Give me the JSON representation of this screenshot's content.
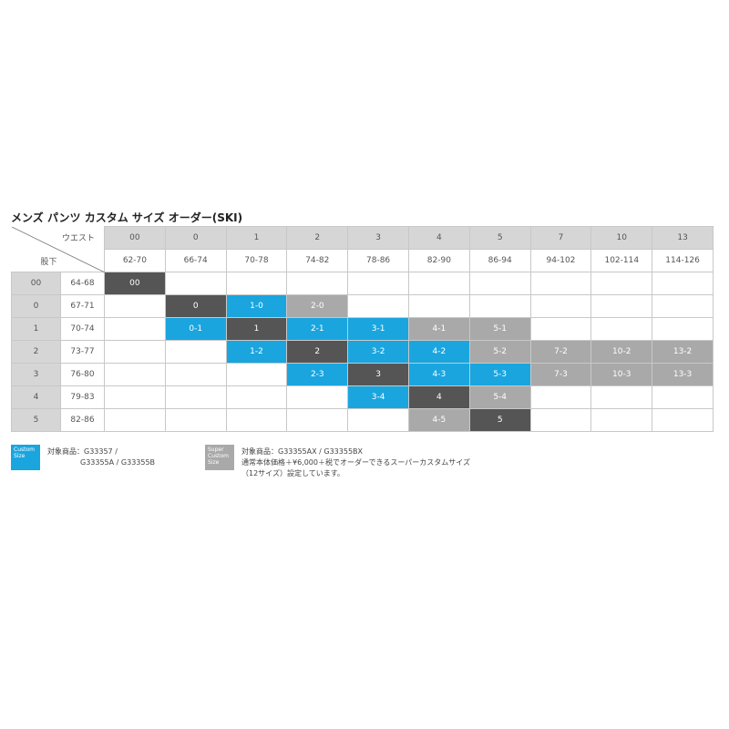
{
  "title": "メンズ パンツ カスタム サイズ オーダー(SKI)",
  "corner": {
    "waist_label": "ウエスト",
    "inseam_label": "股下"
  },
  "waist_sizes": [
    "00",
    "0",
    "1",
    "2",
    "3",
    "4",
    "5",
    "7",
    "10",
    "13"
  ],
  "waist_ranges": [
    "62-70",
    "66-74",
    "70-78",
    "74-82",
    "78-86",
    "82-90",
    "86-94",
    "94-102",
    "102-114",
    "114-126"
  ],
  "rows": [
    {
      "size": "00",
      "range": "64-68",
      "cells": [
        [
          "00",
          "dark"
        ],
        null,
        null,
        null,
        null,
        null,
        null,
        null,
        null,
        null
      ]
    },
    {
      "size": "0",
      "range": "67-71",
      "cells": [
        null,
        [
          "0",
          "dark"
        ],
        [
          "1-0",
          "blue"
        ],
        [
          "2-0",
          "gray"
        ],
        null,
        null,
        null,
        null,
        null,
        null
      ]
    },
    {
      "size": "1",
      "range": "70-74",
      "cells": [
        null,
        [
          "0-1",
          "blue"
        ],
        [
          "1",
          "dark"
        ],
        [
          "2-1",
          "blue"
        ],
        [
          "3-1",
          "blue"
        ],
        [
          "4-1",
          "gray"
        ],
        [
          "5-1",
          "gray"
        ],
        null,
        null,
        null
      ]
    },
    {
      "size": "2",
      "range": "73-77",
      "cells": [
        null,
        null,
        [
          "1-2",
          "blue"
        ],
        [
          "2",
          "dark"
        ],
        [
          "3-2",
          "blue"
        ],
        [
          "4-2",
          "blue"
        ],
        [
          "5-2",
          "gray"
        ],
        [
          "7-2",
          "gray"
        ],
        [
          "10-2",
          "gray"
        ],
        [
          "13-2",
          "gray"
        ]
      ]
    },
    {
      "size": "3",
      "range": "76-80",
      "cells": [
        null,
        null,
        null,
        [
          "2-3",
          "blue"
        ],
        [
          "3",
          "dark"
        ],
        [
          "4-3",
          "blue"
        ],
        [
          "5-3",
          "blue"
        ],
        [
          "7-3",
          "gray"
        ],
        [
          "10-3",
          "gray"
        ],
        [
          "13-3",
          "gray"
        ]
      ]
    },
    {
      "size": "4",
      "range": "79-83",
      "cells": [
        null,
        null,
        null,
        null,
        [
          "3-4",
          "blue"
        ],
        [
          "4",
          "dark"
        ],
        [
          "5-4",
          "gray"
        ],
        null,
        null,
        null
      ]
    },
    {
      "size": "5",
      "range": "82-86",
      "cells": [
        null,
        null,
        null,
        null,
        null,
        [
          "4-5",
          "gray"
        ],
        [
          "5",
          "dark"
        ],
        null,
        null,
        null
      ]
    }
  ],
  "legend": {
    "custom": {
      "badge": "Custom Size",
      "lines": [
        "対象商品：G33357 /",
        "G33355A / G33355B"
      ],
      "color": "#1aa5df"
    },
    "super": {
      "badge": "Super Custom Size",
      "lines": [
        "対象商品：G33355AX / G33355BX",
        "通常本体価格＋¥6,000＋税でオーダーできるスーパーカスタムサイズ",
        "（12サイズ）設定しています。"
      ],
      "color": "#a9a9a9"
    }
  }
}
